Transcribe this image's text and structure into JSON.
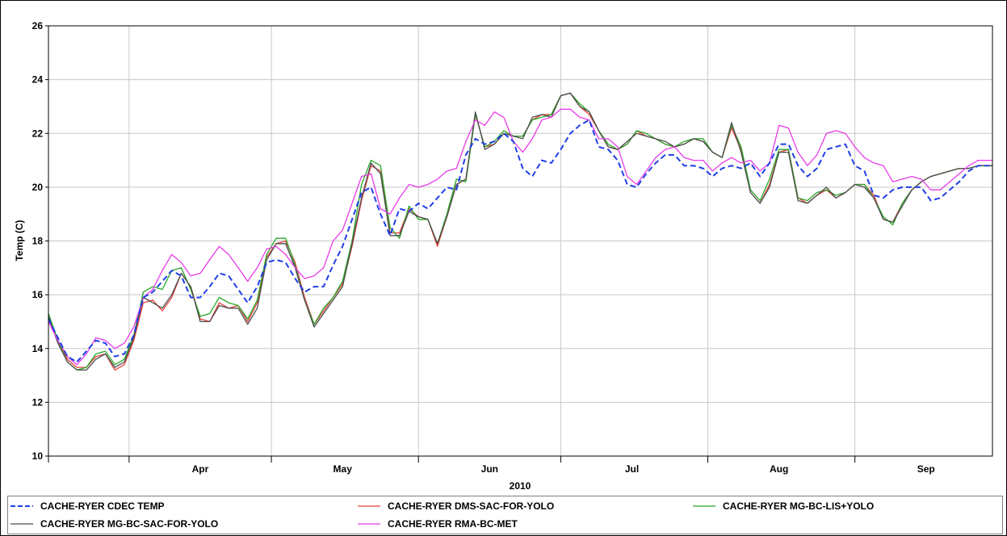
{
  "chart_data": {
    "type": "line",
    "title": "",
    "ylabel": "Temp (C)",
    "xlabel": "2010",
    "ylim": [
      10,
      26
    ],
    "yticks": [
      10,
      12,
      14,
      16,
      18,
      20,
      22,
      24,
      26
    ],
    "xlim": [
      "2010-03-15",
      "2010-09-30"
    ],
    "month_boundaries": [
      "2010-04-01",
      "2010-05-01",
      "2010-06-01",
      "2010-07-01",
      "2010-08-01",
      "2010-09-01"
    ],
    "month_labels": [
      {
        "label": "Apr",
        "date": "2010-04-16"
      },
      {
        "label": "May",
        "date": "2010-05-16"
      },
      {
        "label": "Jun",
        "date": "2010-06-16"
      },
      {
        "label": "Jul",
        "date": "2010-07-16"
      },
      {
        "label": "Aug",
        "date": "2010-08-16"
      },
      {
        "label": "Sep",
        "date": "2010-09-16"
      }
    ],
    "grid": true,
    "legend_position": "bottom",
    "x": [
      "2010-03-15",
      "2010-03-17",
      "2010-03-19",
      "2010-03-21",
      "2010-03-23",
      "2010-03-25",
      "2010-03-27",
      "2010-03-29",
      "2010-03-31",
      "2010-04-02",
      "2010-04-04",
      "2010-04-06",
      "2010-04-08",
      "2010-04-10",
      "2010-04-12",
      "2010-04-14",
      "2010-04-16",
      "2010-04-18",
      "2010-04-20",
      "2010-04-22",
      "2010-04-24",
      "2010-04-26",
      "2010-04-28",
      "2010-04-30",
      "2010-05-02",
      "2010-05-04",
      "2010-05-06",
      "2010-05-08",
      "2010-05-10",
      "2010-05-12",
      "2010-05-14",
      "2010-05-16",
      "2010-05-18",
      "2010-05-20",
      "2010-05-22",
      "2010-05-24",
      "2010-05-26",
      "2010-05-28",
      "2010-05-30",
      "2010-06-01",
      "2010-06-03",
      "2010-06-05",
      "2010-06-07",
      "2010-06-09",
      "2010-06-11",
      "2010-06-13",
      "2010-06-15",
      "2010-06-17",
      "2010-06-19",
      "2010-06-21",
      "2010-06-23",
      "2010-06-25",
      "2010-06-27",
      "2010-06-29",
      "2010-07-01",
      "2010-07-03",
      "2010-07-05",
      "2010-07-07",
      "2010-07-09",
      "2010-07-11",
      "2010-07-13",
      "2010-07-15",
      "2010-07-17",
      "2010-07-19",
      "2010-07-21",
      "2010-07-23",
      "2010-07-25",
      "2010-07-27",
      "2010-07-29",
      "2010-07-31",
      "2010-08-02",
      "2010-08-04",
      "2010-08-06",
      "2010-08-08",
      "2010-08-10",
      "2010-08-12",
      "2010-08-14",
      "2010-08-16",
      "2010-08-18",
      "2010-08-20",
      "2010-08-22",
      "2010-08-24",
      "2010-08-26",
      "2010-08-28",
      "2010-08-30",
      "2010-09-01",
      "2010-09-03",
      "2010-09-05",
      "2010-09-07",
      "2010-09-09",
      "2010-09-11",
      "2010-09-13",
      "2010-09-15",
      "2010-09-17",
      "2010-09-19",
      "2010-09-21",
      "2010-09-23",
      "2010-09-25",
      "2010-09-27",
      "2010-09-29",
      "2010-09-30"
    ],
    "series": [
      {
        "name": "CACHE-RYER CDEC TEMP",
        "color": "#1f3fe6",
        "dash": "7,4",
        "width": 2,
        "values": [
          15.1,
          14.4,
          13.7,
          13.5,
          13.9,
          14.3,
          14.2,
          13.7,
          13.8,
          14.5,
          15.9,
          16.1,
          16.5,
          16.9,
          16.7,
          15.9,
          15.9,
          16.3,
          16.8,
          16.7,
          16.2,
          15.7,
          16.3,
          17.2,
          17.3,
          17.2,
          16.6,
          16.1,
          16.3,
          16.3,
          17.1,
          17.8,
          18.8,
          19.8,
          20.0,
          19.0,
          18.2,
          19.2,
          19.1,
          19.4,
          19.2,
          19.6,
          20.0,
          19.9,
          21.2,
          21.8,
          21.6,
          21.7,
          22.0,
          21.7,
          20.7,
          20.4,
          21.0,
          20.9,
          21.4,
          22.0,
          22.3,
          22.5,
          21.5,
          21.4,
          21.0,
          20.1,
          20.0,
          20.5,
          20.9,
          21.2,
          21.2,
          20.8,
          20.8,
          20.7,
          20.4,
          20.7,
          20.8,
          20.7,
          20.9,
          20.4,
          20.9,
          21.6,
          21.6,
          20.8,
          20.4,
          20.7,
          21.4,
          21.5,
          21.6,
          20.8,
          20.6,
          19.7,
          19.6,
          19.9,
          20.0,
          20.0,
          20.0,
          19.5,
          19.6,
          19.9,
          20.2,
          20.6,
          20.8,
          20.8,
          20.8
        ]
      },
      {
        "name": "CACHE-RYER DMS-SAC-FOR-YOLO",
        "color": "#e8413c",
        "dash": "",
        "width": 1.3,
        "values": [
          15.2,
          14.3,
          13.6,
          13.3,
          13.3,
          13.7,
          13.8,
          13.2,
          13.4,
          14.3,
          15.7,
          15.8,
          15.4,
          15.9,
          16.8,
          16.3,
          15.1,
          15.0,
          15.7,
          15.5,
          15.6,
          15.0,
          15.7,
          17.4,
          17.9,
          18.0,
          17.2,
          15.9,
          14.9,
          15.4,
          15.9,
          16.4,
          17.8,
          19.5,
          20.8,
          20.6,
          18.3,
          18.3,
          19.2,
          18.9,
          18.8,
          17.8,
          18.9,
          20.1,
          20.3,
          22.7,
          21.5,
          21.6,
          22.0,
          21.9,
          21.9,
          22.5,
          22.7,
          22.7,
          23.4,
          23.5,
          23.0,
          22.7,
          22.1,
          21.5,
          21.4,
          21.6,
          22.1,
          21.9,
          21.8,
          21.6,
          21.5,
          21.6,
          21.8,
          21.7,
          21.3,
          21.1,
          22.2,
          21.4,
          19.8,
          19.4,
          20.1,
          21.3,
          21.4,
          19.6,
          19.4,
          19.7,
          19.9,
          19.6,
          19.8,
          20.1,
          20.1,
          19.7,
          18.8,
          18.7,
          19.4,
          19.9,
          20.2,
          20.4,
          20.5,
          20.6,
          20.7,
          20.7,
          20.8,
          20.8,
          20.8
        ]
      },
      {
        "name": "CACHE-RYER MG-BC-LIS+YOLO",
        "color": "#27a827",
        "dash": "",
        "width": 1.3,
        "values": [
          15.3,
          14.3,
          13.5,
          13.2,
          13.3,
          13.8,
          13.9,
          13.4,
          13.6,
          14.5,
          16.1,
          16.3,
          16.2,
          16.9,
          17.0,
          16.2,
          15.2,
          15.3,
          15.9,
          15.7,
          15.6,
          15.1,
          15.8,
          17.5,
          18.1,
          18.1,
          17.1,
          15.8,
          14.9,
          15.5,
          15.9,
          16.5,
          18.0,
          20.1,
          21.0,
          20.8,
          18.5,
          18.1,
          19.3,
          18.8,
          18.8,
          17.9,
          19.0,
          20.3,
          20.2,
          22.7,
          21.5,
          21.7,
          22.1,
          21.9,
          21.9,
          22.5,
          22.6,
          22.7,
          23.4,
          23.5,
          23.1,
          22.8,
          22.1,
          21.6,
          21.4,
          21.6,
          22.1,
          22.0,
          21.8,
          21.6,
          21.5,
          21.7,
          21.8,
          21.8,
          21.3,
          21.1,
          22.3,
          21.5,
          19.9,
          19.5,
          20.3,
          21.4,
          21.4,
          19.6,
          19.5,
          19.8,
          19.9,
          19.7,
          19.8,
          20.1,
          20.1,
          19.6,
          18.9,
          18.6,
          19.4,
          19.9,
          20.2,
          20.4,
          20.5,
          20.6,
          20.7,
          20.7,
          20.8,
          20.8,
          20.8
        ]
      },
      {
        "name": "CACHE-RYER MG-BC-SAC-FOR-YOLO",
        "color": "#4d4d4d",
        "dash": "",
        "width": 1.3,
        "values": [
          15.2,
          14.2,
          13.5,
          13.2,
          13.2,
          13.6,
          13.8,
          13.3,
          13.5,
          14.4,
          15.9,
          15.7,
          15.5,
          16.0,
          16.8,
          16.3,
          15.0,
          15.0,
          15.6,
          15.5,
          15.5,
          14.9,
          15.5,
          17.3,
          17.9,
          17.9,
          17.0,
          15.8,
          14.8,
          15.3,
          15.8,
          16.3,
          17.9,
          19.6,
          20.9,
          20.5,
          18.2,
          18.2,
          19.1,
          18.9,
          18.8,
          17.9,
          18.9,
          20.1,
          20.3,
          22.8,
          21.4,
          21.6,
          22.0,
          21.9,
          21.8,
          22.6,
          22.7,
          22.6,
          23.4,
          23.5,
          23.0,
          22.8,
          22.1,
          21.5,
          21.4,
          21.7,
          22.0,
          21.9,
          21.8,
          21.7,
          21.5,
          21.6,
          21.8,
          21.7,
          21.3,
          21.1,
          22.4,
          21.3,
          19.8,
          19.4,
          20.0,
          21.3,
          21.3,
          19.5,
          19.4,
          19.7,
          20.0,
          19.6,
          19.8,
          20.1,
          20.0,
          19.6,
          18.8,
          18.7,
          19.3,
          19.9,
          20.2,
          20.4,
          20.5,
          20.6,
          20.7,
          20.7,
          20.8,
          20.8,
          20.8
        ]
      },
      {
        "name": "CACHE-RYER RMA-BC-MET",
        "color": "#e83ce8",
        "dash": "",
        "width": 1.3,
        "values": [
          15.0,
          14.3,
          13.7,
          13.4,
          13.8,
          14.4,
          14.3,
          14.0,
          14.2,
          14.8,
          15.9,
          16.2,
          16.9,
          17.5,
          17.2,
          16.7,
          16.8,
          17.3,
          17.8,
          17.5,
          17.0,
          16.5,
          17.0,
          17.7,
          17.8,
          17.5,
          17.0,
          16.6,
          16.7,
          17.0,
          18.0,
          18.4,
          19.4,
          20.4,
          20.5,
          19.2,
          19.0,
          19.6,
          20.1,
          20.0,
          20.1,
          20.3,
          20.6,
          20.7,
          21.7,
          22.5,
          22.3,
          22.8,
          22.6,
          21.7,
          21.3,
          21.8,
          22.5,
          22.6,
          22.9,
          22.9,
          22.6,
          22.5,
          21.8,
          21.8,
          21.5,
          20.4,
          20.1,
          20.6,
          21.1,
          21.4,
          21.5,
          21.1,
          21.0,
          21.0,
          20.6,
          20.9,
          21.1,
          20.9,
          21.0,
          20.6,
          20.9,
          22.3,
          22.2,
          21.3,
          20.8,
          21.2,
          22.0,
          22.1,
          22.0,
          21.5,
          21.1,
          20.9,
          20.8,
          20.2,
          20.3,
          20.4,
          20.3,
          19.9,
          19.9,
          20.2,
          20.5,
          20.8,
          21.0,
          21.0,
          21.0
        ]
      }
    ]
  }
}
